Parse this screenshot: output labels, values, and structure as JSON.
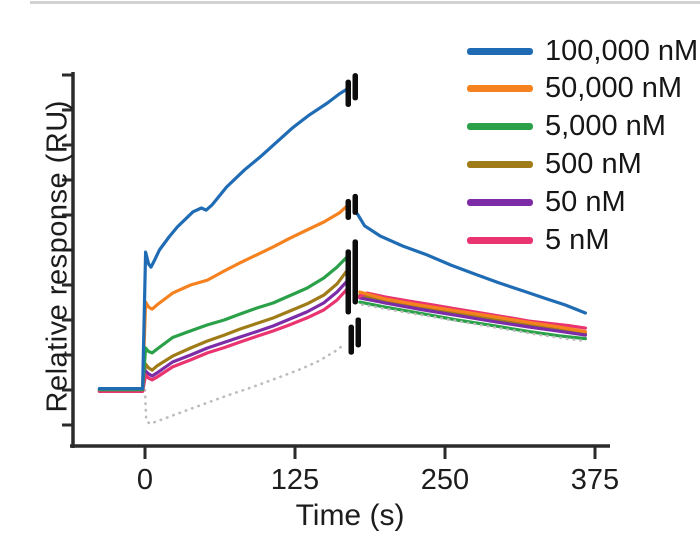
{
  "figure": {
    "background": "#ffffff",
    "top_border_color": "#d2d2d2",
    "axis_color": "#2b2b2b",
    "text_color": "#1c1c1c"
  },
  "chart_data": {
    "type": "line",
    "title": "",
    "xlabel": "Time (s)",
    "ylabel": "Relative response (RU)",
    "x_ticks": [
      0,
      125,
      250,
      375
    ],
    "x_range": [
      -62,
      387
    ],
    "y_ticks_unlabeled_units": [
      -1,
      0,
      1,
      2,
      3,
      4,
      5,
      6,
      7,
      8,
      9
    ],
    "y_axis_numbers_shown": false,
    "legend_position": "upper right",
    "grid": false,
    "phases": {
      "baseline_end_s": 0,
      "association_end_s": 172,
      "dissociation_end_s": 368
    },
    "series": [
      {
        "label": "100,000 nM",
        "color": "#1f6cb5",
        "association": [
          [
            -38,
            0.04
          ],
          [
            -2,
            0.04
          ],
          [
            0.5,
            3.94
          ],
          [
            3,
            3.6
          ],
          [
            5,
            3.51
          ],
          [
            8,
            3.71
          ],
          [
            12,
            4.0
          ],
          [
            20,
            4.37
          ],
          [
            27,
            4.66
          ],
          [
            40,
            5.09
          ],
          [
            47,
            5.2
          ],
          [
            51,
            5.14
          ],
          [
            56,
            5.29
          ],
          [
            68,
            5.8
          ],
          [
            83,
            6.29
          ],
          [
            96,
            6.66
          ],
          [
            110,
            7.09
          ],
          [
            123,
            7.49
          ],
          [
            137,
            7.86
          ],
          [
            152,
            8.2
          ],
          [
            162,
            8.46
          ],
          [
            170,
            8.63
          ]
        ],
        "dissociation": [
          [
            177,
            5.03
          ],
          [
            183,
            4.69
          ],
          [
            196,
            4.4
          ],
          [
            215,
            4.11
          ],
          [
            235,
            3.86
          ],
          [
            255,
            3.57
          ],
          [
            275,
            3.31
          ],
          [
            295,
            3.06
          ],
          [
            315,
            2.83
          ],
          [
            335,
            2.6
          ],
          [
            350,
            2.43
          ],
          [
            367,
            2.2
          ]
        ]
      },
      {
        "label": "50,000 nM",
        "color": "#f5821f",
        "association": [
          [
            -38,
            0.02
          ],
          [
            -2,
            0.02
          ],
          [
            0.5,
            2.51
          ],
          [
            3,
            2.37
          ],
          [
            6,
            2.31
          ],
          [
            10,
            2.43
          ],
          [
            23,
            2.77
          ],
          [
            38,
            3.0
          ],
          [
            52,
            3.14
          ],
          [
            66,
            3.4
          ],
          [
            79,
            3.63
          ],
          [
            93,
            3.86
          ],
          [
            107,
            4.09
          ],
          [
            121,
            4.34
          ],
          [
            135,
            4.57
          ],
          [
            149,
            4.8
          ],
          [
            162,
            5.06
          ],
          [
            170,
            5.31
          ]
        ],
        "dissociation": [
          [
            179,
            2.8
          ],
          [
            200,
            2.6
          ],
          [
            230,
            2.42
          ],
          [
            260,
            2.26
          ],
          [
            290,
            2.1
          ],
          [
            320,
            1.93
          ],
          [
            345,
            1.8
          ],
          [
            367,
            1.67
          ]
        ]
      },
      {
        "label": "5,000 nM",
        "color": "#2aa148",
        "association": [
          [
            -38,
            0.01
          ],
          [
            -2,
            0.01
          ],
          [
            0.5,
            1.2
          ],
          [
            3,
            1.1
          ],
          [
            6,
            1.06
          ],
          [
            10,
            1.17
          ],
          [
            23,
            1.5
          ],
          [
            38,
            1.69
          ],
          [
            52,
            1.86
          ],
          [
            66,
            2.0
          ],
          [
            79,
            2.17
          ],
          [
            93,
            2.34
          ],
          [
            107,
            2.49
          ],
          [
            121,
            2.7
          ],
          [
            135,
            2.91
          ],
          [
            149,
            3.2
          ],
          [
            160,
            3.51
          ],
          [
            170,
            3.86
          ]
        ],
        "dissociation": [
          [
            179,
            2.51
          ],
          [
            200,
            2.37
          ],
          [
            230,
            2.19
          ],
          [
            260,
            2.0
          ],
          [
            290,
            1.84
          ],
          [
            320,
            1.67
          ],
          [
            345,
            1.55
          ],
          [
            367,
            1.47
          ]
        ]
      },
      {
        "label": "500 nM",
        "color": "#a07c18",
        "association": [
          [
            -38,
            -0.01
          ],
          [
            -2,
            -0.01
          ],
          [
            0.5,
            0.74
          ],
          [
            3,
            0.63
          ],
          [
            6,
            0.57
          ],
          [
            10,
            0.69
          ],
          [
            23,
            0.97
          ],
          [
            38,
            1.2
          ],
          [
            52,
            1.4
          ],
          [
            66,
            1.57
          ],
          [
            79,
            1.74
          ],
          [
            93,
            1.9
          ],
          [
            107,
            2.06
          ],
          [
            121,
            2.26
          ],
          [
            135,
            2.46
          ],
          [
            149,
            2.71
          ],
          [
            160,
            3.03
          ],
          [
            170,
            3.49
          ]
        ],
        "dissociation": [
          [
            179,
            2.71
          ],
          [
            200,
            2.54
          ],
          [
            230,
            2.36
          ],
          [
            260,
            2.19
          ],
          [
            290,
            2.01
          ],
          [
            320,
            1.85
          ],
          [
            345,
            1.72
          ],
          [
            367,
            1.61
          ]
        ]
      },
      {
        "label": "50 nM",
        "color": "#7d2ca8",
        "association": [
          [
            -38,
            -0.03
          ],
          [
            -2,
            -0.03
          ],
          [
            0.5,
            0.54
          ],
          [
            3,
            0.46
          ],
          [
            6,
            0.4
          ],
          [
            10,
            0.49
          ],
          [
            23,
            0.8
          ],
          [
            38,
            1.0
          ],
          [
            52,
            1.2
          ],
          [
            66,
            1.36
          ],
          [
            79,
            1.51
          ],
          [
            93,
            1.67
          ],
          [
            107,
            1.83
          ],
          [
            121,
            2.03
          ],
          [
            135,
            2.23
          ],
          [
            149,
            2.49
          ],
          [
            160,
            2.8
          ],
          [
            170,
            3.17
          ]
        ],
        "dissociation": [
          [
            179,
            2.63
          ],
          [
            200,
            2.49
          ],
          [
            230,
            2.3
          ],
          [
            260,
            2.13
          ],
          [
            290,
            1.96
          ],
          [
            320,
            1.8
          ],
          [
            345,
            1.68
          ],
          [
            367,
            1.57
          ]
        ]
      },
      {
        "label": "5 nM",
        "color": "#e93470",
        "association": [
          [
            -38,
            -0.04
          ],
          [
            -2,
            -0.04
          ],
          [
            0.5,
            0.43
          ],
          [
            3,
            0.34
          ],
          [
            6,
            0.29
          ],
          [
            10,
            0.37
          ],
          [
            23,
            0.66
          ],
          [
            38,
            0.86
          ],
          [
            52,
            1.06
          ],
          [
            66,
            1.21
          ],
          [
            79,
            1.37
          ],
          [
            93,
            1.53
          ],
          [
            107,
            1.69
          ],
          [
            121,
            1.87
          ],
          [
            135,
            2.06
          ],
          [
            149,
            2.29
          ],
          [
            160,
            2.57
          ],
          [
            170,
            2.94
          ]
        ],
        "dissociation": [
          [
            178,
            2.66
          ],
          [
            185,
            2.77
          ],
          [
            200,
            2.66
          ],
          [
            220,
            2.54
          ],
          [
            240,
            2.43
          ],
          [
            260,
            2.31
          ],
          [
            280,
            2.2
          ],
          [
            300,
            2.09
          ],
          [
            320,
            1.97
          ],
          [
            340,
            1.89
          ],
          [
            355,
            1.83
          ],
          [
            367,
            1.77
          ]
        ]
      }
    ],
    "blank_series": {
      "label": "buffer blank (dotted)",
      "color": "#bdbdbd",
      "style": "dotted",
      "association": [
        [
          0,
          0.0
        ],
        [
          1,
          -0.86
        ],
        [
          4,
          -0.97
        ],
        [
          15,
          -0.83
        ],
        [
          45,
          -0.45
        ],
        [
          70,
          -0.14
        ],
        [
          90,
          0.09
        ],
        [
          110,
          0.34
        ],
        [
          130,
          0.6
        ],
        [
          145,
          0.83
        ],
        [
          160,
          1.14
        ],
        [
          167,
          1.34
        ]
      ],
      "dissociation": [
        [
          181,
          2.44
        ],
        [
          210,
          2.26
        ],
        [
          240,
          2.09
        ],
        [
          270,
          1.91
        ],
        [
          300,
          1.74
        ],
        [
          330,
          1.57
        ],
        [
          350,
          1.47
        ],
        [
          367,
          1.4
        ]
      ]
    },
    "injection_end_markers": [
      {
        "t": 172.5,
        "r_mid": 8.57,
        "h_units": 0.78
      },
      {
        "t": 172.5,
        "r_mid": 5.23,
        "h_units": 0.6
      },
      {
        "t": 172.5,
        "r_mid": 3.23,
        "h_units": 1.86
      },
      {
        "t": 175.0,
        "r_mid": 1.54,
        "h_units": 0.86
      }
    ]
  }
}
